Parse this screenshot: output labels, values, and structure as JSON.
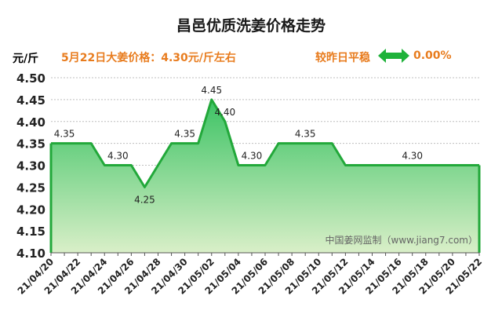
{
  "header": {
    "title": "昌邑优质洗姜价格走势",
    "unit": "元/斤",
    "price_note": "5月22日大姜价格：4.30元/斤左右",
    "trend_label": "较昨日平稳",
    "trend_percent": "0.00%",
    "trend_icon": "double-arrow-icon"
  },
  "colors": {
    "line": "#22a83a",
    "fill_top": "#3cc364",
    "fill_bottom": "#d9efc8",
    "accent": "#e87c1e",
    "arrow": "#1fb23a"
  },
  "chart_data": {
    "type": "area",
    "title": "昌邑优质洗姜价格走势",
    "ylabel": "元/斤",
    "xlabel": "",
    "ylim": [
      4.1,
      4.5
    ],
    "yticks": [
      "4.10",
      "4.15",
      "4.20",
      "4.25",
      "4.30",
      "4.35",
      "4.40",
      "4.45",
      "4.50"
    ],
    "grid": true,
    "x_tick_labels": [
      "21/04/20",
      "21/04/22",
      "21/04/24",
      "21/04/26",
      "21/04/28",
      "21/04/30",
      "21/05/02",
      "21/05/04",
      "21/05/06",
      "21/05/08",
      "21/05/10",
      "21/05/12",
      "21/05/14",
      "21/05/16",
      "21/05/18",
      "21/05/20",
      "21/05/22"
    ],
    "x": [
      "21/04/20",
      "21/04/21",
      "21/04/22",
      "21/04/23",
      "21/04/24",
      "21/04/25",
      "21/04/26",
      "21/04/27",
      "21/04/28",
      "21/04/29",
      "21/04/30",
      "21/05/01",
      "21/05/02",
      "21/05/03",
      "21/05/04",
      "21/05/05",
      "21/05/06",
      "21/05/07",
      "21/05/08",
      "21/05/09",
      "21/05/10",
      "21/05/11",
      "21/05/12",
      "21/05/13",
      "21/05/14",
      "21/05/15",
      "21/05/16",
      "21/05/17",
      "21/05/18",
      "21/05/19",
      "21/05/20",
      "21/05/21",
      "21/05/22"
    ],
    "values": [
      4.35,
      4.35,
      4.35,
      4.35,
      4.3,
      4.3,
      4.3,
      4.25,
      4.3,
      4.35,
      4.35,
      4.35,
      4.45,
      4.4,
      4.3,
      4.3,
      4.3,
      4.35,
      4.35,
      4.35,
      4.35,
      4.35,
      4.3,
      4.3,
      4.3,
      4.3,
      4.3,
      4.3,
      4.3,
      4.3,
      4.3,
      4.3,
      4.3
    ],
    "data_labels": [
      {
        "x": "21/04/21",
        "text": "4.35"
      },
      {
        "x": "21/04/25",
        "text": "4.30"
      },
      {
        "x": "21/04/27",
        "text": "4.25"
      },
      {
        "x": "21/04/30",
        "text": "4.35"
      },
      {
        "x": "21/05/02",
        "text": "4.45"
      },
      {
        "x": "21/05/03",
        "text": "4.40"
      },
      {
        "x": "21/05/05",
        "text": "4.30"
      },
      {
        "x": "21/05/09",
        "text": "4.35"
      },
      {
        "x": "21/05/17",
        "text": "4.30"
      }
    ],
    "watermark": "中国姜网监制（www.jiang7.com）"
  }
}
